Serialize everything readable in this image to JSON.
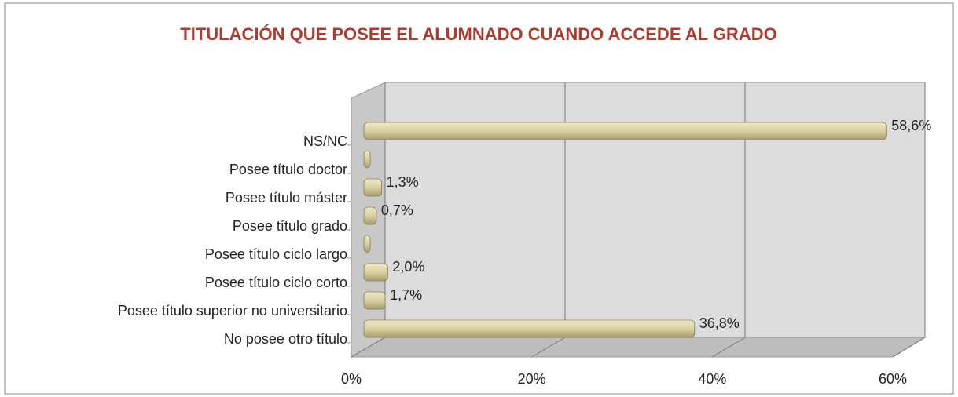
{
  "chart_data": {
    "type": "bar",
    "orientation": "horizontal",
    "title": "TITULACIÓN QUE POSEE EL ALUMNADO CUANDO ACCEDE AL GRADO",
    "categories": [
      "NS/NC",
      "Posee título doctor",
      "Posee título máster",
      "Posee título grado",
      "Posee título ciclo largo",
      "Posee título ciclo corto",
      "Posee título superior no universitario",
      "No posee otro título"
    ],
    "values": [
      58.6,
      0,
      1.3,
      0.7,
      0,
      2.0,
      1.7,
      36.8
    ],
    "value_labels": [
      "58,6%",
      null,
      "1,3%",
      "0,7%",
      null,
      "2,0%",
      "1,7%",
      "36,8%"
    ],
    "color": "#d9cf9f",
    "xlim": [
      0,
      60
    ],
    "xticks": [
      {
        "value": 0,
        "label": "0%"
      },
      {
        "value": 20,
        "label": "20%"
      },
      {
        "value": 40,
        "label": "40%"
      },
      {
        "value": 60,
        "label": "60%"
      }
    ],
    "grid": true
  }
}
